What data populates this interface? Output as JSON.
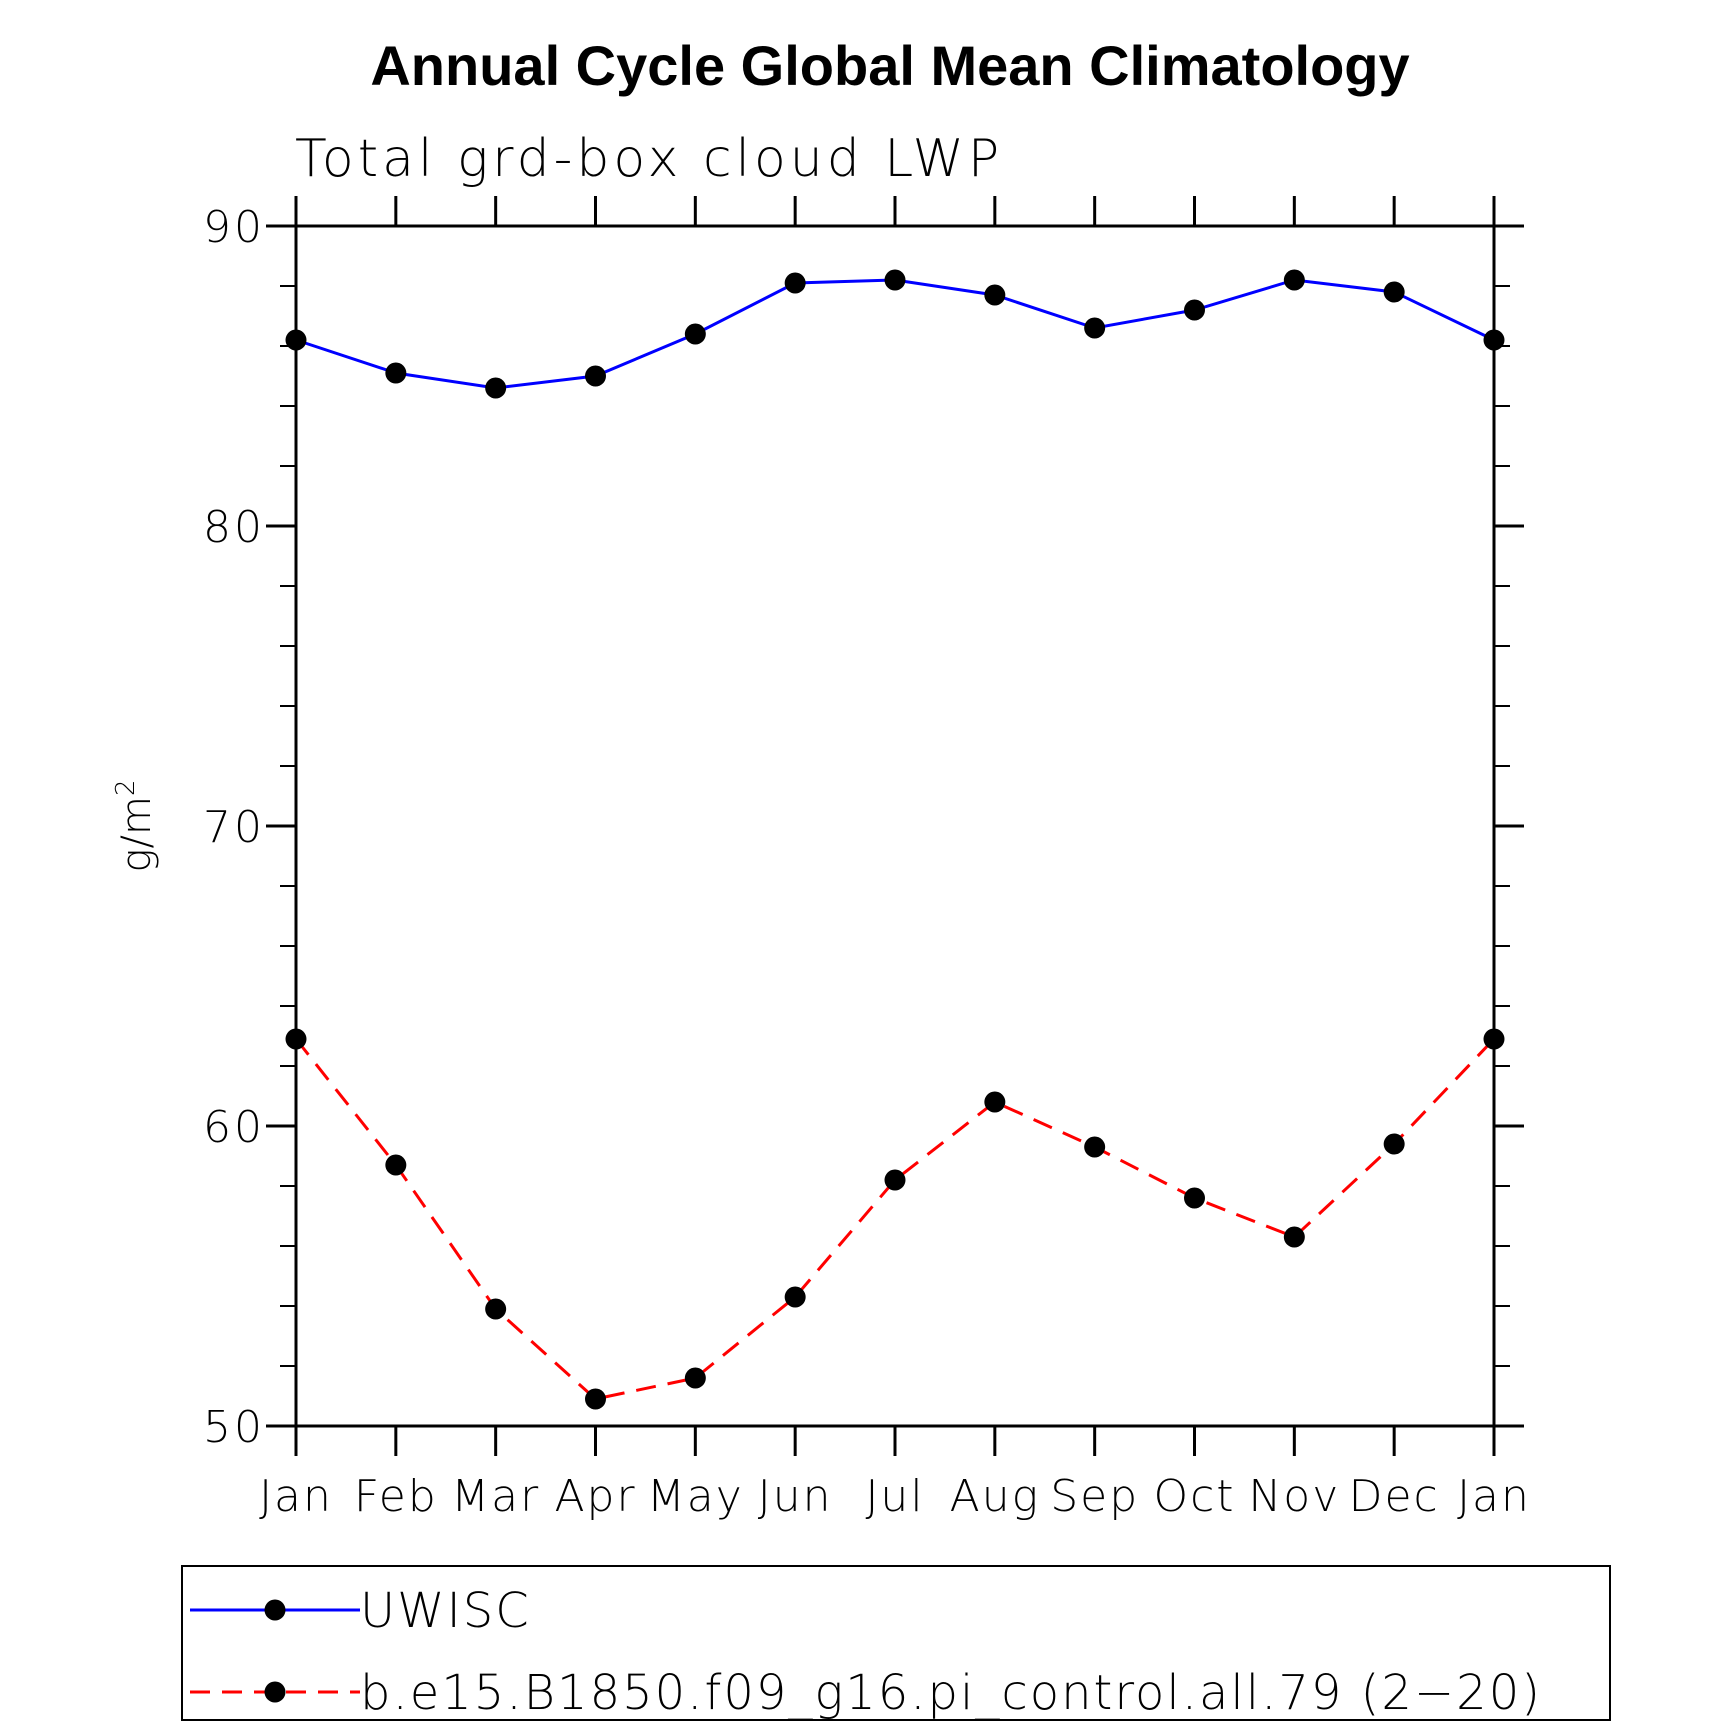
{
  "chart_data": {
    "type": "line",
    "title": "Annual Cycle Global Mean Climatology",
    "subtitle": "Total grd-box cloud LWP",
    "ylabel": "g/m",
    "ylabel_superscript": "2",
    "ylim": [
      50,
      90
    ],
    "yticks": [
      "50",
      "60",
      "70",
      "80",
      "90"
    ],
    "categories": [
      "Jan",
      "Feb",
      "Mar",
      "Apr",
      "May",
      "Jun",
      "Jul",
      "Aug",
      "Sep",
      "Oct",
      "Nov",
      "Dec",
      "Jan"
    ],
    "series": [
      {
        "name": "UWISC",
        "color": "#0000ff",
        "dash": "solid",
        "values": [
          86.2,
          85.1,
          84.6,
          85.0,
          86.4,
          88.1,
          88.2,
          87.7,
          86.6,
          87.2,
          88.2,
          87.8,
          86.2
        ]
      },
      {
        "name": "b.e15.B1850.f09_g16.pi_control.all.79 (2−20)",
        "color": "#ff0000",
        "dash": "dashed",
        "values": [
          62.9,
          58.7,
          53.9,
          50.9,
          51.6,
          54.3,
          58.2,
          60.8,
          59.3,
          57.6,
          56.3,
          59.4,
          62.9
        ]
      }
    ],
    "legend_position": "bottom"
  }
}
